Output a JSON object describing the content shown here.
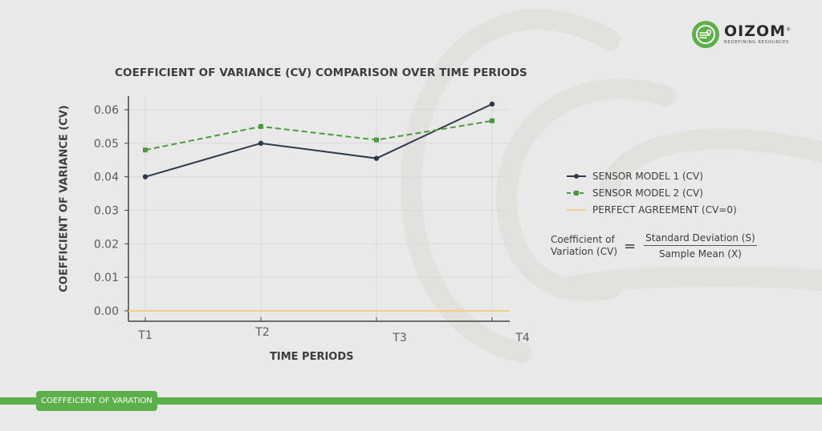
{
  "brand": {
    "name": "OIZOM",
    "tagline": "REDEFINING RESOURCES",
    "registered_mark": "®",
    "accent_color": "#5cb04a"
  },
  "footer": {
    "badge_label": "COEFFEICENT OF VARATION"
  },
  "formula": {
    "lhs_line1": "Coefficient of",
    "lhs_line2": "Variation (CV)",
    "equals": "=",
    "numerator": "Standard Deviation (S)",
    "denominator": "Sample Mean (X)"
  },
  "chart_data": {
    "type": "line",
    "title": "COEFFICIENT OF VARIANCE (CV) COMPARISON OVER TIME PERIODS",
    "xlabel": "TIME PERIODS",
    "ylabel": "COEFFICIENT OF VARIANCE (CV)",
    "categories": [
      "T1",
      "T2",
      "T3",
      "T4"
    ],
    "ylim": [
      0,
      0.06
    ],
    "yticks": [
      "0.00",
      "0.01",
      "0.02",
      "0.03",
      "0.04",
      "0.05",
      "0.06"
    ],
    "grid": true,
    "legend_position": "right",
    "series": [
      {
        "name": "SENSOR MODEL 1 (CV)",
        "values": [
          0.04,
          0.05,
          0.0455,
          0.0617
        ],
        "color": "#2e3a4b",
        "style": "solid",
        "marker": "circle"
      },
      {
        "name": "SENSOR MODEL 2 (CV)",
        "values": [
          0.048,
          0.055,
          0.051,
          0.0567
        ],
        "color": "#4c9a3f",
        "style": "dashed",
        "marker": "square"
      },
      {
        "name": "PERFECT AGREEMENT (CV=0)",
        "values": [
          0,
          0,
          0,
          0
        ],
        "color": "#f2cf8a",
        "style": "solid",
        "marker": "none"
      }
    ]
  }
}
